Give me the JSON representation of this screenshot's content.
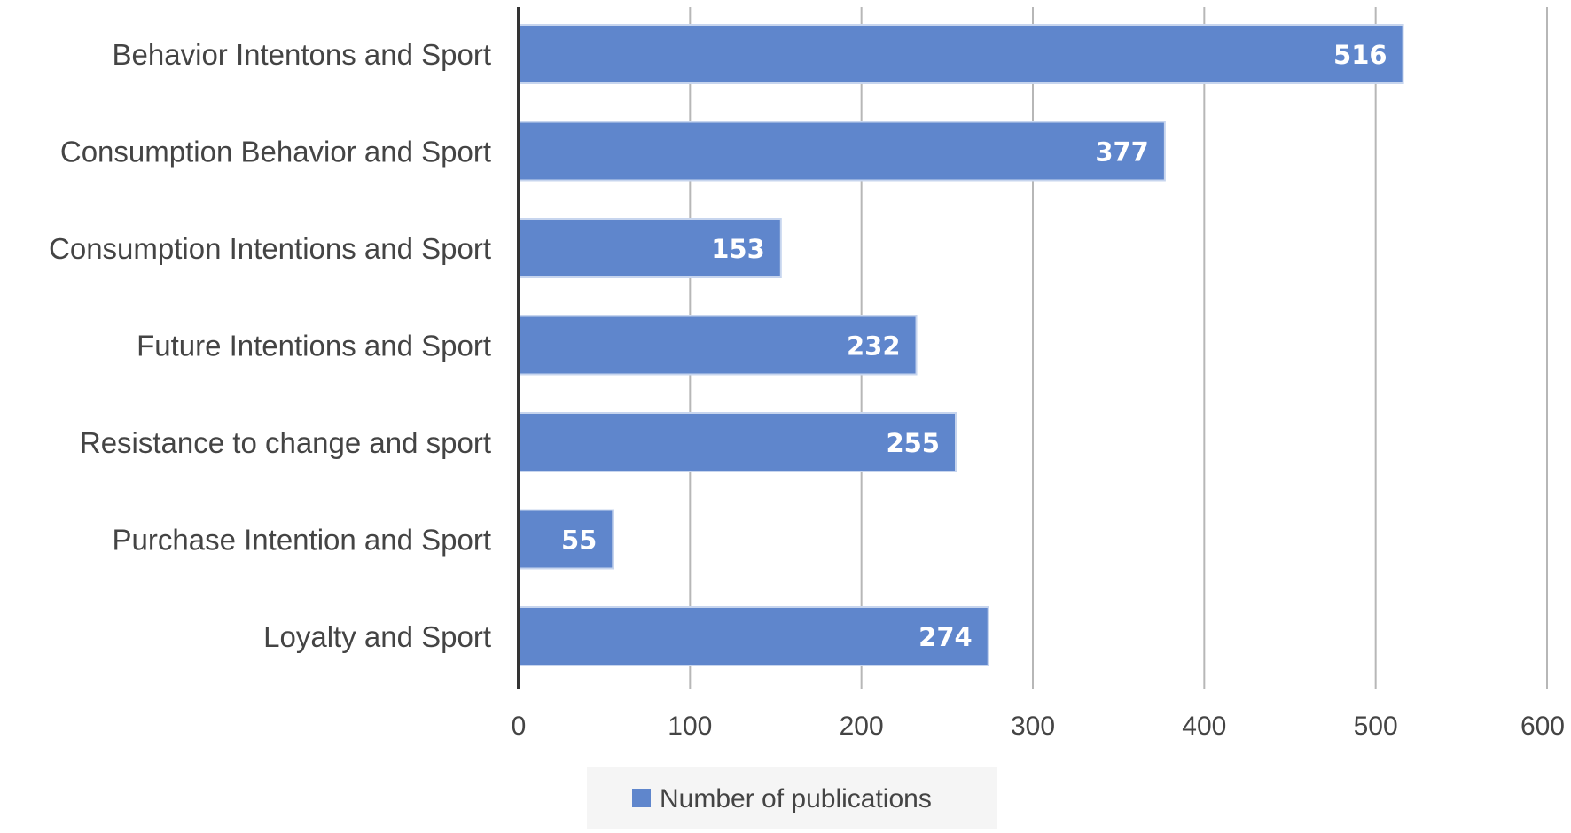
{
  "chart_data": {
    "type": "bar",
    "orientation": "horizontal",
    "categories": [
      "Behavior Intentons and Sport",
      "Consumption Behavior and Sport",
      "Consumption Intentions and Sport",
      "Future Intentions and Sport",
      "Resistance to change and sport",
      "Purchase Intention and Sport",
      "Loyalty and Sport"
    ],
    "series": [
      {
        "name": "Number of publications",
        "values": [
          516,
          377,
          153,
          232,
          255,
          55,
          274
        ],
        "color": "#5f86cc"
      }
    ],
    "data_labels": [
      "516",
      "377",
      "153",
      "232",
      "255",
      "55",
      "274"
    ],
    "xlim": [
      0,
      600
    ],
    "x_ticks": [
      "0",
      "100",
      "200",
      "300",
      "400",
      "500",
      "600"
    ],
    "grid": "vertical",
    "legend": {
      "position": "bottom",
      "label": "Number of publications"
    },
    "title": "",
    "xlabel": "",
    "ylabel": ""
  }
}
